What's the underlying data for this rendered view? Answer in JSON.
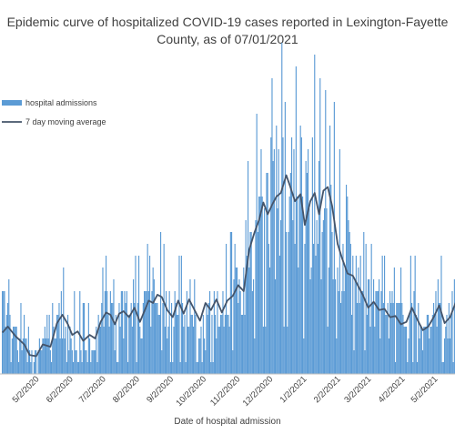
{
  "chart_data": {
    "type": "bar",
    "title_line1": "Epidemic curve of hospitalized COVID-19 cases reported in Lexington-Fayette",
    "title_line2": "County, as of 07/01/2021",
    "xlabel": "Date of hospital admission",
    "ylabel": "",
    "x_ticks": [
      "5/2/2020",
      "6/2/2020",
      "7/2/2020",
      "8/2/2020",
      "9/2/2020",
      "10/2/2020",
      "11/2/2020",
      "12/2/2020",
      "1/2/2021",
      "2/2/2021",
      "3/2/2021",
      "4/2/2021",
      "5/2/2021"
    ],
    "x_start": "2020-03-31",
    "x_end": "2021-05-26",
    "grid": false,
    "legend_position": "top-left",
    "series": [
      {
        "name": "hospital admissions",
        "kind": "bar",
        "color": "#5b9bd5"
      },
      {
        "name": "7 day moving average",
        "kind": "line",
        "color": "#44546a"
      }
    ],
    "trend_points": [
      [
        "2020-03-31",
        3.5
      ],
      [
        "2020-04-05",
        4
      ],
      [
        "2020-04-12",
        3.2
      ],
      [
        "2020-04-20",
        2.5
      ],
      [
        "2020-04-25",
        1.6
      ],
      [
        "2020-05-01",
        1.5
      ],
      [
        "2020-05-07",
        2.5
      ],
      [
        "2020-05-14",
        2.3
      ],
      [
        "2020-05-20",
        4.3
      ],
      [
        "2020-05-25",
        5
      ],
      [
        "2020-05-30",
        4.2
      ],
      [
        "2020-06-03",
        3.3
      ],
      [
        "2020-06-08",
        3.6
      ],
      [
        "2020-06-13",
        2.8
      ],
      [
        "2020-06-19",
        3.3
      ],
      [
        "2020-06-24",
        3
      ],
      [
        "2020-06-29",
        4.4
      ],
      [
        "2020-07-04",
        5.2
      ],
      [
        "2020-07-08",
        5
      ],
      [
        "2020-07-12",
        4.2
      ],
      [
        "2020-07-16",
        5.1
      ],
      [
        "2020-07-20",
        5.3
      ],
      [
        "2020-07-25",
        4.8
      ],
      [
        "2020-07-30",
        5.6
      ],
      [
        "2020-08-04",
        4.4
      ],
      [
        "2020-08-08",
        5.3
      ],
      [
        "2020-08-12",
        6.2
      ],
      [
        "2020-08-16",
        6
      ],
      [
        "2020-08-20",
        6.7
      ],
      [
        "2020-08-24",
        6.5
      ],
      [
        "2020-08-29",
        5.4
      ],
      [
        "2020-09-03",
        4.8
      ],
      [
        "2020-09-08",
        6.2
      ],
      [
        "2020-09-13",
        5.1
      ],
      [
        "2020-09-18",
        6.3
      ],
      [
        "2020-09-23",
        5.4
      ],
      [
        "2020-09-28",
        4.5
      ],
      [
        "2020-10-03",
        6
      ],
      [
        "2020-10-08",
        5.4
      ],
      [
        "2020-10-13",
        6.3
      ],
      [
        "2020-10-18",
        5.2
      ],
      [
        "2020-10-23",
        6.2
      ],
      [
        "2020-10-28",
        6.6
      ],
      [
        "2020-11-02",
        7.5
      ],
      [
        "2020-11-07",
        7
      ],
      [
        "2020-11-12",
        10.5
      ],
      [
        "2020-11-17",
        12
      ],
      [
        "2020-11-21",
        13
      ],
      [
        "2020-11-25",
        14.5
      ],
      [
        "2020-11-29",
        13.5
      ],
      [
        "2020-12-03",
        14.3
      ],
      [
        "2020-12-07",
        15
      ],
      [
        "2020-12-11",
        15.3
      ],
      [
        "2020-12-16",
        16.8
      ],
      [
        "2020-12-19",
        16
      ],
      [
        "2020-12-24",
        14.6
      ],
      [
        "2020-12-29",
        15.2
      ],
      [
        "2021-01-02",
        12.6
      ],
      [
        "2021-01-07",
        14.6
      ],
      [
        "2021-01-11",
        15.3
      ],
      [
        "2021-01-15",
        13.5
      ],
      [
        "2021-01-19",
        15.5
      ],
      [
        "2021-01-23",
        15.8
      ],
      [
        "2021-01-27",
        14.2
      ],
      [
        "2021-02-01",
        11
      ],
      [
        "2021-02-05",
        9.8
      ],
      [
        "2021-02-10",
        8.5
      ],
      [
        "2021-02-15",
        8.3
      ],
      [
        "2021-02-20",
        7.4
      ],
      [
        "2021-02-24",
        6.7
      ],
      [
        "2021-03-01",
        5.6
      ],
      [
        "2021-03-06",
        6.1
      ],
      [
        "2021-03-11",
        5.4
      ],
      [
        "2021-03-16",
        5.5
      ],
      [
        "2021-03-21",
        4.8
      ],
      [
        "2021-03-26",
        4.9
      ],
      [
        "2021-03-31",
        4.2
      ],
      [
        "2021-04-05",
        4.4
      ],
      [
        "2021-04-10",
        5.6
      ],
      [
        "2021-04-15",
        4.6
      ],
      [
        "2021-04-20",
        3.7
      ],
      [
        "2021-04-25",
        4
      ],
      [
        "2021-04-30",
        4.8
      ],
      [
        "2021-05-05",
        5.8
      ],
      [
        "2021-05-10",
        4.3
      ],
      [
        "2021-05-15",
        4.8
      ],
      [
        "2021-05-20",
        6
      ],
      [
        "2021-05-26",
        4.8
      ]
    ],
    "spike_points": [
      [
        "2020-08-03",
        9.5
      ],
      [
        "2020-08-13",
        9.5
      ],
      [
        "2020-09-09",
        9.5
      ],
      [
        "2020-10-30",
        10.5
      ],
      [
        "2020-11-09",
        13
      ],
      [
        "2020-11-28",
        17
      ],
      [
        "2020-12-04",
        18.2
      ],
      [
        "2020-12-15",
        22.7
      ],
      [
        "2020-12-21",
        19.5
      ],
      [
        "2021-01-09",
        20
      ],
      [
        "2021-01-21",
        23.5
      ],
      [
        "2021-02-11",
        13
      ],
      [
        "2021-02-22",
        10.2
      ],
      [
        "2021-03-31",
        9
      ]
    ],
    "ylim": [
      0,
      25
    ]
  }
}
